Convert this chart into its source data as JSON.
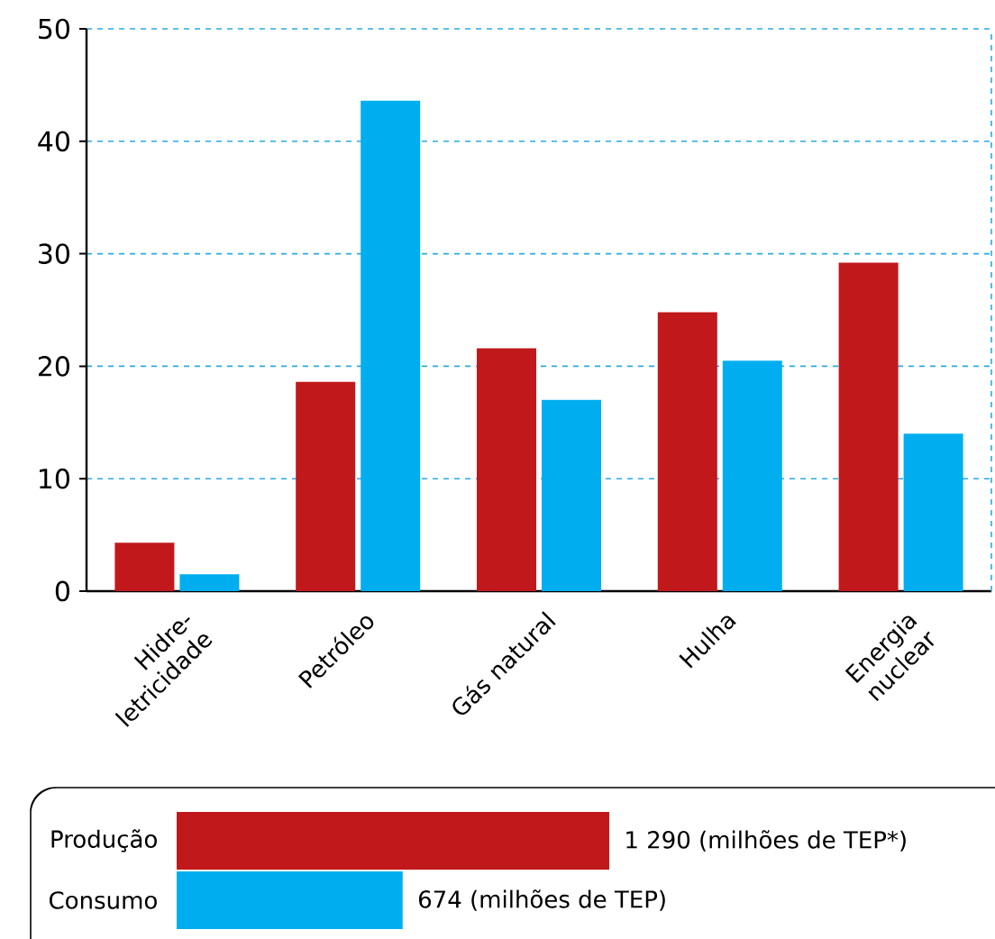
{
  "chart_data": [
    {
      "type": "bar",
      "categories": [
        "Hidre- letricidade",
        "Petróleo",
        "Gás natural",
        "Hulha",
        "Energia nuclear"
      ],
      "series": [
        {
          "color": "#c1181b",
          "values": [
            4.3,
            18.6,
            21.6,
            24.8,
            29.2
          ]
        },
        {
          "color": "#00aeef",
          "values": [
            1.5,
            43.6,
            17.0,
            20.5,
            14.0
          ]
        }
      ],
      "ylim": [
        0,
        50
      ],
      "yticks": [
        0,
        10,
        20,
        30,
        40,
        50
      ],
      "grid": "y"
    },
    {
      "type": "bar",
      "orientation": "horizontal",
      "categories": [
        "Produção",
        "Consumo"
      ],
      "values": [
        1290,
        674
      ],
      "colors": [
        "#c1181b",
        "#00aeef"
      ],
      "value_labels": [
        "1 290 (milhões de TEP*)",
        "674 (milhões de TEP)"
      ]
    }
  ]
}
